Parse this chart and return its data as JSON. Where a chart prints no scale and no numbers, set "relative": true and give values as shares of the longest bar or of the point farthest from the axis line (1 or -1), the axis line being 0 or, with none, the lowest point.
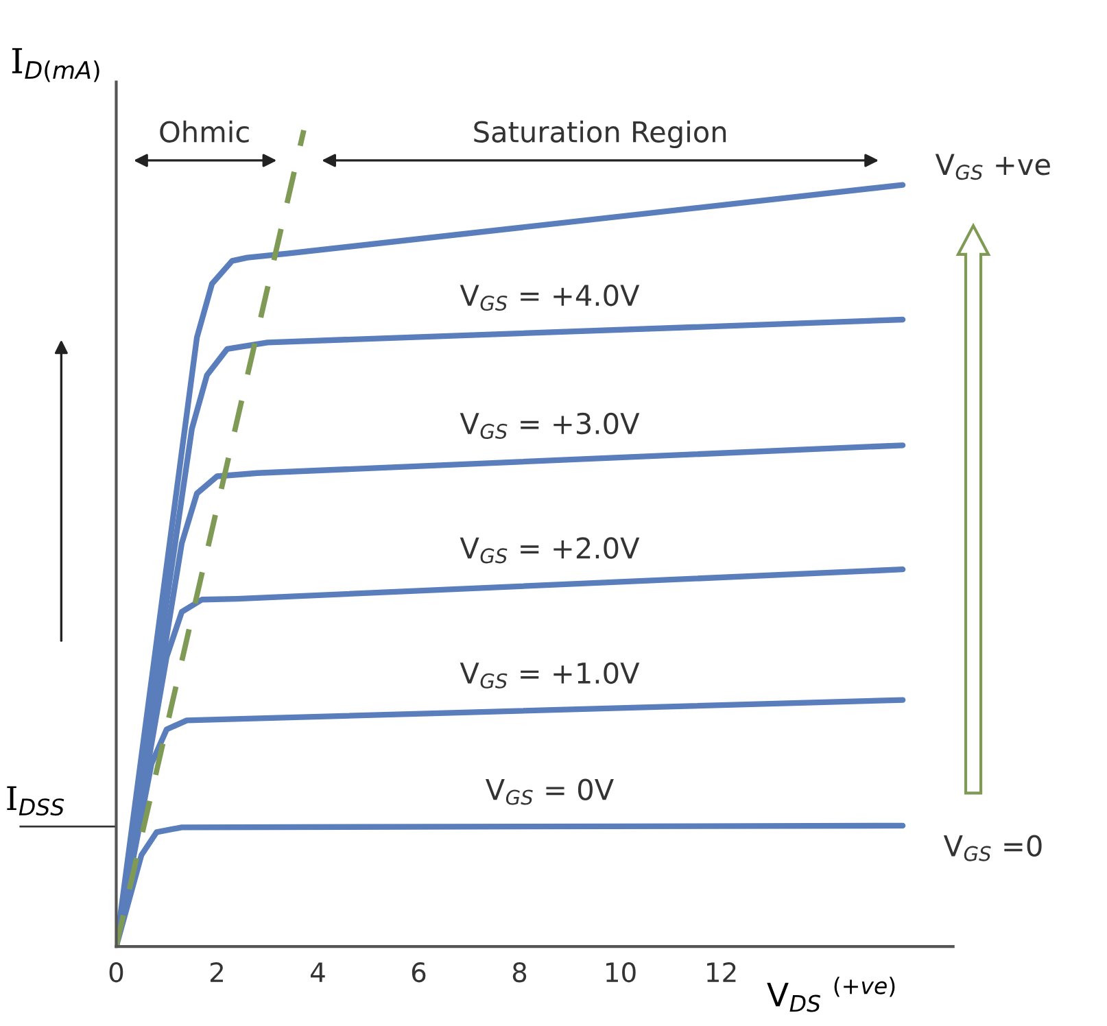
{
  "chart_data": {
    "type": "line",
    "relative": true,
    "xlabel": "V$_{DS}$ $^{(+ve)}$",
    "ylabel": "I$_{D(mA)}$",
    "xlim": [
      0,
      16.6
    ],
    "xticks": [
      0,
      2,
      4,
      6,
      8,
      10,
      12
    ],
    "tick_labels": "x",
    "grid": false,
    "marker": "none",
    "series": [
      {
        "color": "#5a7dbb",
        "x": [
          0,
          1.6,
          1.9,
          2.3,
          2.6,
          3.4,
          15.6
        ],
        "values": [
          0,
          0.746,
          0.812,
          0.84,
          0.844,
          0.849,
          0.933
        ]
      },
      {
        "name": "V$_{GS}$ = +4.0V",
        "color": "#5a7dbb",
        "x": [
          0,
          1.5,
          1.8,
          2.2,
          3.0,
          15.6
        ],
        "values": [
          0,
          0.634,
          0.7,
          0.732,
          0.74,
          0.768
        ]
      },
      {
        "name": "V$_{GS}$ = +3.0V",
        "color": "#5a7dbb",
        "x": [
          0,
          1.3,
          1.6,
          2.0,
          2.8,
          15.6
        ],
        "values": [
          0,
          0.494,
          0.555,
          0.576,
          0.58,
          0.614
        ]
      },
      {
        "name": "V$_{GS}$ = +2.0V",
        "color": "#5a7dbb",
        "x": [
          0,
          1.0,
          1.3,
          1.7,
          2.4,
          15.6
        ],
        "values": [
          0,
          0.355,
          0.41,
          0.425,
          0.426,
          0.462
        ]
      },
      {
        "name": "V$_{GS}$ = +1.0V",
        "color": "#5a7dbb",
        "x": [
          0,
          0.7,
          1.0,
          1.4,
          15.6
        ],
        "values": [
          0,
          0.224,
          0.266,
          0.277,
          0.302
        ]
      },
      {
        "name": "V$_{GS}$ = 0V",
        "color": "#5a7dbb",
        "x": [
          0,
          0.5,
          0.8,
          1.3,
          15.6
        ],
        "values": [
          0,
          0.112,
          0.14,
          0.146,
          0.148
        ]
      },
      {
        "color": "#7f9a55",
        "line_style": "dashed",
        "x": [
          0,
          3.72
        ],
        "values": [
          0,
          1.0
        ]
      }
    ],
    "ref_lines": [
      {
        "axis": "y",
        "value": 0.147,
        "label": "I$_{DSS}$"
      }
    ],
    "annotations": [
      "Ohmic",
      "Saturation Region",
      "V$_{GS}$ +ve",
      "V$_{GS}$ =0"
    ]
  }
}
